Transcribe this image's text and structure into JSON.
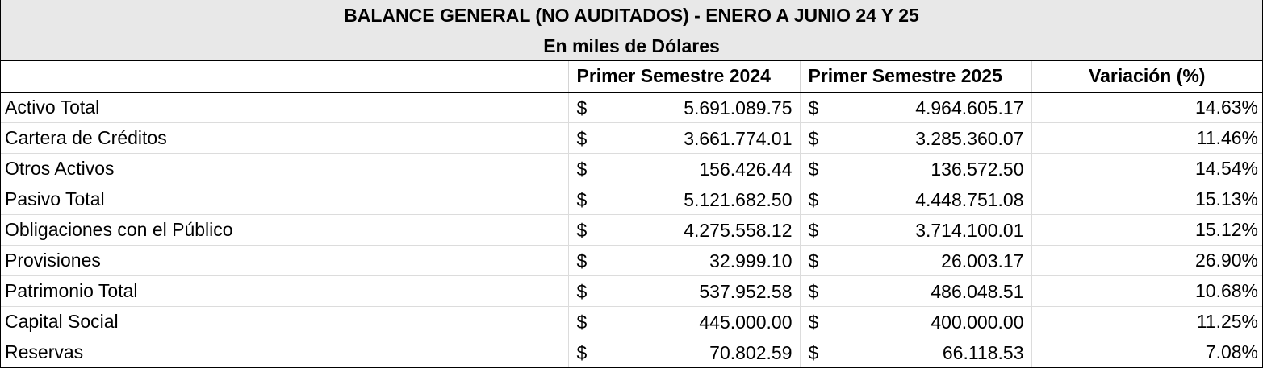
{
  "title": "BALANCE GENERAL (NO AUDITADOS) - ENERO A JUNIO 24 Y 25",
  "subtitle": "En miles de Dólares",
  "headers": {
    "label": "",
    "year1": "Primer Semestre 2024",
    "year2": "Primer Semestre 2025",
    "variation": "Variación (%)"
  },
  "currency_symbol": "$",
  "rows": [
    {
      "label": "Activo Total",
      "year1": "5.691.089.75",
      "year2": "4.964.605.17",
      "variation": "14.63%"
    },
    {
      "label": "Cartera de Créditos",
      "year1": "3.661.774.01",
      "year2": "3.285.360.07",
      "variation": "11.46%"
    },
    {
      "label": "Otros Activos",
      "year1": "156.426.44",
      "year2": "136.572.50",
      "variation": "14.54%"
    },
    {
      "label": "Pasivo Total",
      "year1": "5.121.682.50",
      "year2": "4.448.751.08",
      "variation": "15.13%"
    },
    {
      "label": "Obligaciones con el Público",
      "year1": "4.275.558.12",
      "year2": "3.714.100.01",
      "variation": "15.12%"
    },
    {
      "label": "Provisiones",
      "year1": "32.999.10",
      "year2": "26.003.17",
      "variation": "26.90%"
    },
    {
      "label": "Patrimonio Total",
      "year1": "537.952.58",
      "year2": "486.048.51",
      "variation": "10.68%"
    },
    {
      "label": "Capital Social",
      "year1": "445.000.00",
      "year2": "400.000.00",
      "variation": "11.25%"
    },
    {
      "label": "Reservas",
      "year1": "70.802.59",
      "year2": "66.118.53",
      "variation": "7.08%"
    }
  ]
}
